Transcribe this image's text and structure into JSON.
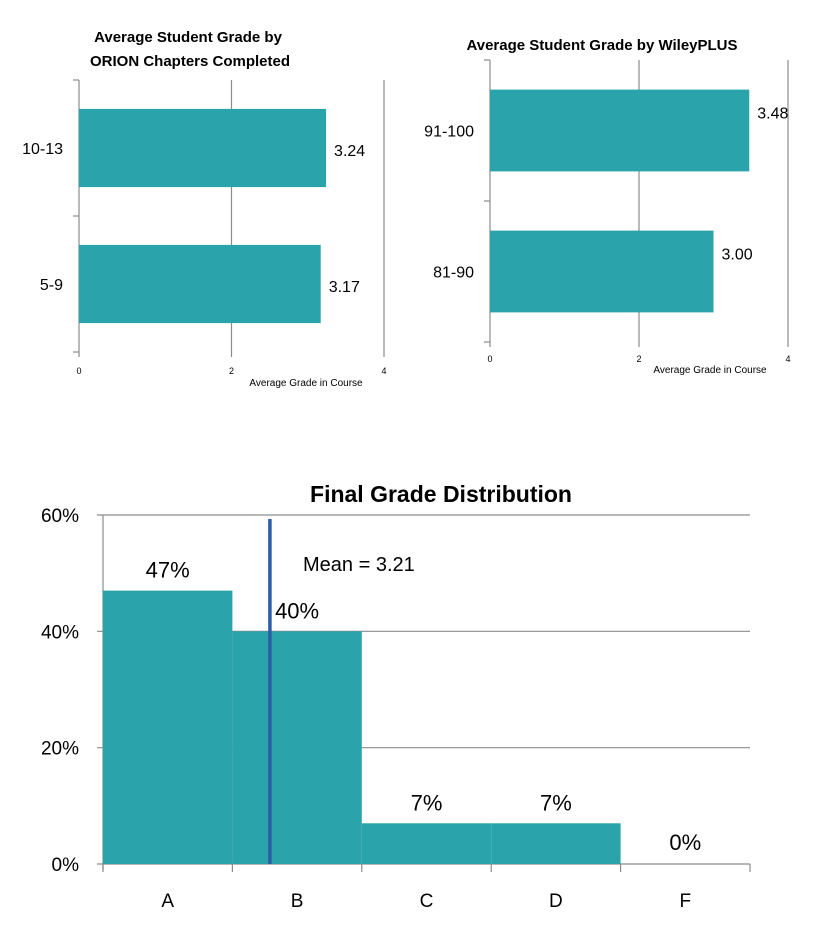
{
  "colors": {
    "bar": "#2aa3ab",
    "mean_line": "#2b5ea8",
    "grid": "#8c8c8c",
    "axis": "#8c8c8c"
  },
  "chart_data": [
    {
      "type": "bar",
      "orientation": "horizontal",
      "title": "Average Student Grade by ORION Chapters Completed",
      "title_lines": [
        "Average Student Grade by",
        "ORION Chapters Completed"
      ],
      "categories": [
        "10-13",
        "5-9"
      ],
      "values": [
        3.24,
        3.17
      ],
      "value_labels": [
        "3.24",
        "3.17"
      ],
      "xlabel": "Average Grade in Course",
      "ylabel": "",
      "xlim": [
        0,
        4
      ],
      "xticks": [
        "0",
        "2",
        "4"
      ],
      "grid": true,
      "legend": "none"
    },
    {
      "type": "bar",
      "orientation": "horizontal",
      "title": "Average Student Grade by WileyPLUS",
      "title_lines": [
        "Average Student Grade by WileyPLUS"
      ],
      "categories": [
        "91-100",
        "81-90"
      ],
      "values": [
        3.48,
        3.0
      ],
      "value_labels": [
        "3.48",
        "3.00"
      ],
      "xlabel": "Average Grade in Course",
      "ylabel": "",
      "xlim": [
        0,
        4
      ],
      "xticks": [
        "0",
        "2",
        "4"
      ],
      "grid": true,
      "legend": "none"
    },
    {
      "type": "bar",
      "orientation": "vertical",
      "title": "Final Grade Distribution",
      "categories": [
        "A",
        "B",
        "C",
        "D",
        "F"
      ],
      "values": [
        47,
        40,
        7,
        7,
        0
      ],
      "value_labels": [
        "47%",
        "40%",
        "7%",
        "7%",
        "0%"
      ],
      "xlabel": "",
      "ylabel": "",
      "ylim": [
        0,
        60
      ],
      "yticks": [
        "0%",
        "20%",
        "40%",
        "60%"
      ],
      "grid": true,
      "legend": "none",
      "annotation": {
        "label": "Mean = 3.21",
        "mean_grade": 3.21
      }
    }
  ]
}
